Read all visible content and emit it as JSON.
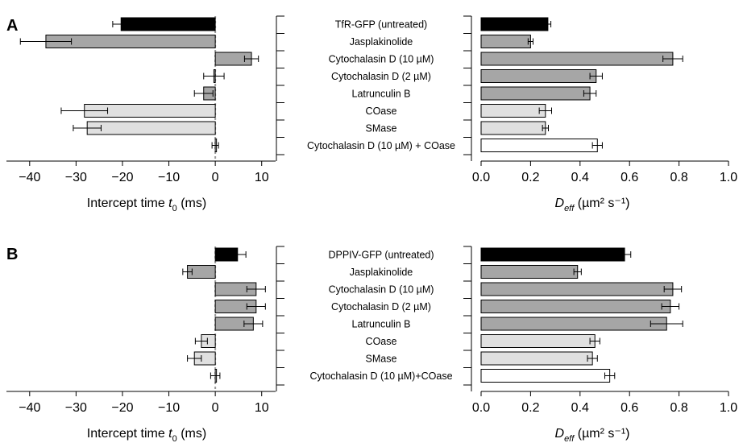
{
  "chart_data": [
    {
      "type": "bar",
      "panel": "A",
      "categories": [
        "TfR-GFP (untreated)",
        "Jasplakinolide",
        "Cytochalasin D (10 µM)",
        "Cytochalasin D (2 µM)",
        "Latrunculin B",
        "COase",
        "SMase",
        "Cytochalasin D (10 µM) + COase"
      ],
      "bar_fills": [
        "#000000",
        "#a6a6a6",
        "#a6a6a6",
        "#a6a6a6",
        "#a6a6a6",
        "#e0e0e0",
        "#e0e0e0",
        "#ffffff"
      ],
      "left": {
        "xlabel_prefix": "Intercept time ",
        "xlabel_var": "t",
        "xlabel_sub": "0",
        "xlabel_suffix": " (ms)",
        "xlim": [
          -45,
          13
        ],
        "ticks": [
          -40,
          -30,
          -20,
          -10,
          0,
          10
        ],
        "tick_labels": [
          "−40",
          "−30",
          "−20",
          "−10",
          "0",
          "10"
        ],
        "values": [
          -20.3,
          -36.5,
          7.8,
          -0.3,
          -2.5,
          -28.2,
          -27.6,
          0.0
        ],
        "errors": [
          1.8,
          5.5,
          1.5,
          2.2,
          2.0,
          5.0,
          3.0,
          0.7
        ]
      },
      "right": {
        "xlabel_var": "D",
        "xlabel_sub": "eff",
        "xlabel_unit": " (µm² s⁻¹)",
        "xlim": [
          0,
          1.0
        ],
        "ticks": [
          0.0,
          0.2,
          0.4,
          0.6,
          0.8,
          1.0
        ],
        "tick_labels": [
          "0.0",
          "0.2",
          "0.4",
          "0.6",
          "0.8",
          "1.0"
        ],
        "values": [
          0.27,
          0.2,
          0.775,
          0.465,
          0.44,
          0.26,
          0.26,
          0.47
        ],
        "errors": [
          0.012,
          0.01,
          0.04,
          0.025,
          0.025,
          0.025,
          0.012,
          0.02
        ]
      }
    },
    {
      "type": "bar",
      "panel": "B",
      "categories": [
        "DPPIV-GFP (untreated)",
        "Jasplakinolide",
        "Cytochalasin D (10 µM)",
        "Cytochalasin D (2 µM)",
        "Latrunculin B",
        "COase",
        "SMase",
        "Cytochalasin D (10 µM)+COase"
      ],
      "bar_fills": [
        "#000000",
        "#a6a6a6",
        "#a6a6a6",
        "#a6a6a6",
        "#a6a6a6",
        "#e0e0e0",
        "#e0e0e0",
        "#ffffff"
      ],
      "left": {
        "xlabel_prefix": "Intercept time ",
        "xlabel_var": "t",
        "xlabel_sub": "0",
        "xlabel_suffix": " (ms)",
        "xlim": [
          -45,
          13
        ],
        "ticks": [
          -40,
          -30,
          -20,
          -10,
          0,
          10
        ],
        "tick_labels": [
          "−40",
          "−30",
          "−20",
          "−10",
          "0",
          "10"
        ],
        "values": [
          4.8,
          -6.0,
          8.8,
          8.8,
          8.2,
          -3.0,
          -4.5,
          0.0
        ],
        "errors": [
          1.8,
          1.0,
          2.0,
          2.0,
          2.0,
          1.3,
          1.5,
          1.0
        ]
      },
      "right": {
        "xlabel_var": "D",
        "xlabel_sub": "eff",
        "xlabel_unit": " (µm² s⁻¹)",
        "xlim": [
          0,
          1.0
        ],
        "ticks": [
          0.0,
          0.2,
          0.4,
          0.6,
          0.8,
          1.0
        ],
        "tick_labels": [
          "0.0",
          "0.2",
          "0.4",
          "0.6",
          "0.8",
          "1.0"
        ],
        "values": [
          0.58,
          0.39,
          0.775,
          0.765,
          0.75,
          0.46,
          0.45,
          0.52
        ],
        "errors": [
          0.025,
          0.015,
          0.035,
          0.035,
          0.065,
          0.02,
          0.02,
          0.02
        ]
      }
    }
  ]
}
